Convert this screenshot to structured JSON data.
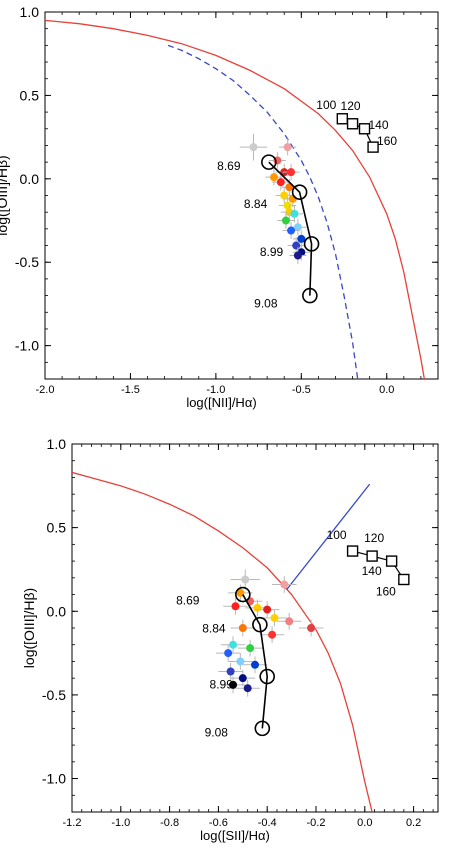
{
  "chart_data": [
    {
      "type": "scatter",
      "xlabel": "log([NII]/Hα)",
      "ylabel": "log([OIII]/Hβ)",
      "xlim": [
        -2.0,
        0.3
      ],
      "ylim": [
        -1.2,
        1.0
      ],
      "xticks": [
        -2.0,
        -1.5,
        -1.0,
        -0.5,
        0.0
      ],
      "xtick_labels": [
        "-2.0",
        "-1.5",
        "-1.0",
        "-0.5",
        "0.0"
      ],
      "yticks": [
        1.0,
        0.5,
        0.0,
        -0.5,
        -1.0
      ],
      "ytick_labels": [
        "1.0",
        "0.5",
        "0.0",
        "-0.5",
        "-1.0"
      ],
      "curves": [
        {
          "style": "solid",
          "color": "#e8403a",
          "x": [
            -2.0,
            -1.8,
            -1.6,
            -1.4,
            -1.2,
            -1.0,
            -0.8,
            -0.6,
            -0.4,
            -0.3,
            -0.2,
            -0.1,
            0.0,
            0.05,
            0.1,
            0.15,
            0.2,
            0.22
          ],
          "y": [
            0.95,
            0.93,
            0.9,
            0.86,
            0.81,
            0.74,
            0.65,
            0.54,
            0.39,
            0.29,
            0.17,
            0.01,
            -0.21,
            -0.36,
            -0.56,
            -0.82,
            -1.08,
            -1.2
          ]
        },
        {
          "style": "dashed",
          "color": "#3848c8",
          "x": [
            -1.28,
            -1.2,
            -1.1,
            -1.0,
            -0.9,
            -0.8,
            -0.7,
            -0.6,
            -0.5,
            -0.45,
            -0.4,
            -0.35,
            -0.3,
            -0.25,
            -0.2,
            -0.17
          ],
          "y": [
            0.8,
            0.77,
            0.72,
            0.66,
            0.59,
            0.5,
            0.4,
            0.27,
            0.11,
            0.01,
            -0.11,
            -0.26,
            -0.45,
            -0.7,
            -0.98,
            -1.2
          ]
        }
      ],
      "model_track": {
        "labels": [
          "8.69",
          "8.84",
          "8.99",
          "9.08"
        ],
        "x": [
          -0.69,
          -0.51,
          -0.44,
          -0.45
        ],
        "y": [
          0.1,
          -0.08,
          -0.39,
          -0.7
        ]
      },
      "square_track": {
        "labels": [
          "100",
          "120",
          "140",
          "160"
        ],
        "x": [
          -0.26,
          -0.2,
          -0.13,
          -0.08
        ],
        "y": [
          0.36,
          0.33,
          0.3,
          0.19
        ]
      },
      "points": [
        {
          "x": -0.78,
          "y": 0.19,
          "c": "#cccccc",
          "err": 0.08
        },
        {
          "x": -0.58,
          "y": 0.19,
          "c": "#f0a0a0",
          "err": 0.05
        },
        {
          "x": -0.64,
          "y": 0.11,
          "c": "#f06060",
          "err": 0.05
        },
        {
          "x": -0.6,
          "y": 0.04,
          "c": "#e02020",
          "err": 0.05
        },
        {
          "x": -0.56,
          "y": 0.04,
          "c": "#ff3030",
          "err": 0.05
        },
        {
          "x": -0.66,
          "y": 0.01,
          "c": "#ff9900",
          "err": 0.05
        },
        {
          "x": -0.62,
          "y": -0.02,
          "c": "#ff2020",
          "err": 0.05
        },
        {
          "x": -0.57,
          "y": -0.05,
          "c": "#ff7700",
          "err": 0.05
        },
        {
          "x": -0.6,
          "y": -0.1,
          "c": "#ffd000",
          "err": 0.05
        },
        {
          "x": -0.55,
          "y": -0.12,
          "c": "#ff9900",
          "err": 0.05
        },
        {
          "x": -0.58,
          "y": -0.16,
          "c": "#f0e000",
          "err": 0.05
        },
        {
          "x": -0.57,
          "y": -0.2,
          "c": "#ffcc00",
          "err": 0.05
        },
        {
          "x": -0.54,
          "y": -0.21,
          "c": "#40e0e0",
          "err": 0.05
        },
        {
          "x": -0.59,
          "y": -0.25,
          "c": "#30d040",
          "err": 0.05
        },
        {
          "x": -0.52,
          "y": -0.29,
          "c": "#80d0ff",
          "err": 0.05
        },
        {
          "x": -0.56,
          "y": -0.31,
          "c": "#2060ff",
          "err": 0.05
        },
        {
          "x": -0.5,
          "y": -0.36,
          "c": "#0040d0",
          "err": 0.05
        },
        {
          "x": -0.53,
          "y": -0.4,
          "c": "#3040c0",
          "err": 0.05
        },
        {
          "x": -0.5,
          "y": -0.44,
          "c": "#001080",
          "err": 0.05
        },
        {
          "x": -0.52,
          "y": -0.46,
          "c": "#1a1a8a",
          "err": 0.05
        }
      ]
    },
    {
      "type": "scatter",
      "xlabel": "log([SII]/Hα)",
      "ylabel": "log([OIII]/Hβ)",
      "xlim": [
        -1.2,
        0.3
      ],
      "ylim": [
        -1.2,
        1.0
      ],
      "xticks": [
        -1.2,
        -1.0,
        -0.8,
        -0.6,
        -0.4,
        -0.2,
        0.0,
        0.2
      ],
      "xtick_labels": [
        "-1.2",
        "-1.0",
        "-0.8",
        "-0.6",
        "-0.4",
        "-0.2",
        "0.0",
        "0.2"
      ],
      "yticks": [
        1.0,
        0.5,
        0.0,
        -0.5,
        -1.0
      ],
      "ytick_labels": [
        "1.0",
        "0.5",
        "0.0",
        "-0.5",
        "-1.0"
      ],
      "curves": [
        {
          "style": "solid",
          "color": "#e8403a",
          "x": [
            -1.2,
            -1.1,
            -1.0,
            -0.9,
            -0.8,
            -0.7,
            -0.6,
            -0.5,
            -0.4,
            -0.3,
            -0.2,
            -0.15,
            -0.1,
            -0.05,
            0.0,
            0.03
          ],
          "y": [
            0.83,
            0.79,
            0.75,
            0.7,
            0.64,
            0.57,
            0.48,
            0.38,
            0.26,
            0.1,
            -0.11,
            -0.25,
            -0.43,
            -0.68,
            -1.02,
            -1.2
          ]
        },
        {
          "style": "solid",
          "color": "#3848c8",
          "x": [
            -0.32,
            0.02
          ],
          "y": [
            0.13,
            0.76
          ]
        }
      ],
      "model_track": {
        "labels": [
          "8.69",
          "8.84",
          "8.99",
          "9.08"
        ],
        "x": [
          -0.5,
          -0.43,
          -0.4,
          -0.42
        ],
        "y": [
          0.1,
          -0.08,
          -0.39,
          -0.7
        ]
      },
      "square_track": {
        "labels": [
          "100",
          "120",
          "140",
          "160"
        ],
        "x": [
          -0.05,
          0.03,
          0.11,
          0.16
        ],
        "y": [
          0.36,
          0.33,
          0.3,
          0.19
        ]
      },
      "points": [
        {
          "x": -0.49,
          "y": 0.19,
          "c": "#cccccc",
          "err": 0.06
        },
        {
          "x": -0.33,
          "y": 0.16,
          "c": "#f0a0a0",
          "err": 0.05
        },
        {
          "x": -0.51,
          "y": 0.11,
          "c": "#ff9900",
          "err": 0.05
        },
        {
          "x": -0.47,
          "y": 0.06,
          "c": "#f06060",
          "err": 0.05
        },
        {
          "x": -0.53,
          "y": 0.03,
          "c": "#ff2020",
          "err": 0.05
        },
        {
          "x": -0.44,
          "y": 0.02,
          "c": "#ffcc00",
          "err": 0.05
        },
        {
          "x": -0.4,
          "y": 0.01,
          "c": "#e02020",
          "err": 0.05
        },
        {
          "x": -0.37,
          "y": -0.04,
          "c": "#ffd000",
          "err": 0.05
        },
        {
          "x": -0.31,
          "y": -0.06,
          "c": "#f08080",
          "err": 0.05
        },
        {
          "x": -0.22,
          "y": -0.1,
          "c": "#e04040",
          "err": 0.05
        },
        {
          "x": -0.5,
          "y": -0.1,
          "c": "#ff7700",
          "err": 0.05
        },
        {
          "x": -0.38,
          "y": -0.14,
          "c": "#ff3030",
          "err": 0.05
        },
        {
          "x": -0.54,
          "y": -0.2,
          "c": "#40e0e0",
          "err": 0.05
        },
        {
          "x": -0.47,
          "y": -0.22,
          "c": "#30d040",
          "err": 0.05
        },
        {
          "x": -0.56,
          "y": -0.25,
          "c": "#2060ff",
          "err": 0.05
        },
        {
          "x": -0.51,
          "y": -0.3,
          "c": "#80d0ff",
          "err": 0.05
        },
        {
          "x": -0.45,
          "y": -0.32,
          "c": "#0040d0",
          "err": 0.05
        },
        {
          "x": -0.55,
          "y": -0.36,
          "c": "#3040c0",
          "err": 0.05
        },
        {
          "x": -0.5,
          "y": -0.4,
          "c": "#001080",
          "err": 0.05
        },
        {
          "x": -0.54,
          "y": -0.44,
          "c": "#000000",
          "err": 0.05
        },
        {
          "x": -0.48,
          "y": -0.46,
          "c": "#1a1a8a",
          "err": 0.05
        }
      ]
    }
  ]
}
